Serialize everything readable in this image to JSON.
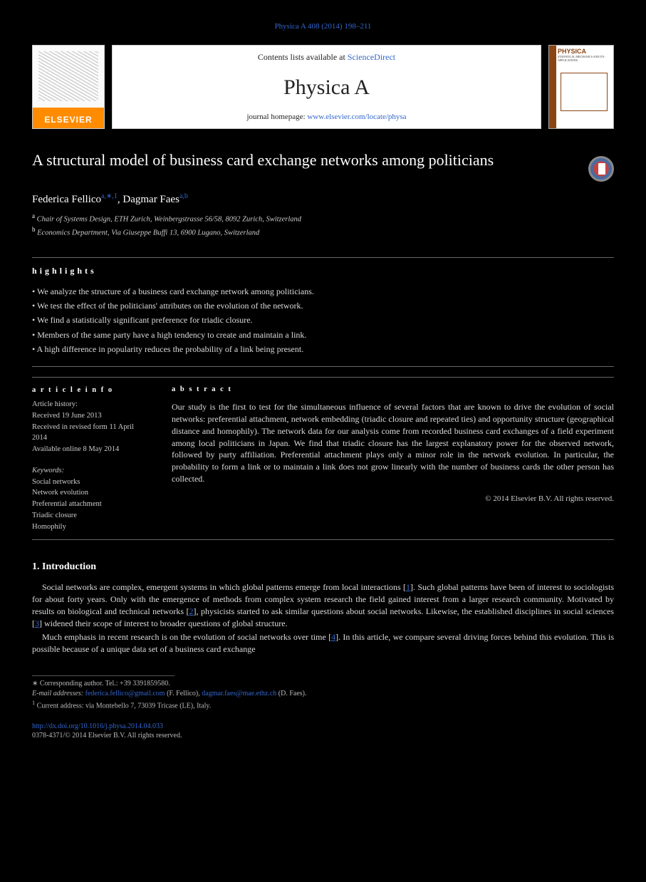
{
  "running_head": "Physica A 408 (2014) 198–211",
  "banner": {
    "elsevier_brand": "ELSEVIER",
    "contents_prefix": "Contents lists available at ",
    "contents_link": "ScienceDirect",
    "journal_name": "Physica A",
    "homepage_prefix": "journal homepage: ",
    "homepage_link": "www.elsevier.com/locate/physa",
    "cover_title": "PHYSICA",
    "cover_sub": "STATISTICAL MECHANICS AND ITS APPLICATIONS"
  },
  "article": {
    "title": "A structural model of business card exchange networks among politicians",
    "authors": "Federica Fellico",
    "author1_sup": "a,∗,1",
    "author2": ", Dagmar Faes",
    "author2_sup": "a,b",
    "affiliations": {
      "a": "Chair of Systems Design, ETH Zurich, Weinbergstrasse 56/58, 8092 Zurich, Switzerland",
      "b": "Economics Department, Via Giuseppe Buffi 13, 6900 Lugano, Switzerland"
    }
  },
  "highlights": {
    "heading": "h i g h l i g h t s",
    "items": [
      "We analyze the structure of a business card exchange network among politicians.",
      "We test the effect of the politicians' attributes on the evolution of the network.",
      "We find a statistically significant preference for triadic closure.",
      "Members of the same party have a high tendency to create and maintain a link.",
      "A high difference in popularity reduces the probability of a link being present."
    ]
  },
  "info": {
    "heading": "a r t i c l e   i n f o",
    "history": [
      "Article history:",
      "Received 19 June 2013",
      "Received in revised form 11 April 2014",
      "Available online 8 May 2014"
    ],
    "keywords_head": "Keywords:",
    "keywords": [
      "Social networks",
      "Network evolution",
      "Preferential attachment",
      "Triadic closure",
      "Homophily"
    ]
  },
  "abstract": {
    "heading": "a b s t r a c t",
    "text": "Our study is the first to test for the simultaneous influence of several factors that are known to drive the evolution of social networks: preferential attachment, network embedding (triadic closure and repeated ties) and opportunity structure (geographical distance and homophily). The network data for our analysis come from recorded business card exchanges of a field experiment among local politicians in Japan. We find that triadic closure has the largest explanatory power for the observed network, followed by party affiliation. Preferential attachment plays only a minor role in the network evolution. In particular, the probability to form a link or to maintain a link does not grow linearly with the number of business cards the other person has collected.",
    "copyright": "© 2014 Elsevier B.V. All rights reserved."
  },
  "section1": {
    "heading": "1. Introduction",
    "p1_a": "Social networks are complex, emergent systems in which global patterns emerge from local interactions [",
    "ref1": "1",
    "p1_b": "]. Such global patterns have been of interest to sociologists for about forty years. Only with the emergence of methods from complex system research the field gained interest from a larger research community. Motivated by results on biological and technical networks [",
    "ref2": "2",
    "p1_c": "], physicists started to ask similar questions about social networks. Likewise, the established disciplines in social sciences [",
    "ref3": "3",
    "p1_d": "] widened their scope of interest to broader questions of global structure.",
    "p2_a": "Much emphasis in recent research is on the evolution of social networks over time [",
    "ref4": "4",
    "p2_b": "]. In this article, we compare several driving forces behind this evolution. This is possible because of a unique data set of a business card exchange"
  },
  "footnotes": {
    "corr_marker": "∗",
    "corr_text": " Corresponding author. Tel.: +39 3391859580.",
    "email_label": "E-mail addresses: ",
    "email1": "federica.fellico@gmail.com",
    "email1_who": " (F. Fellico), ",
    "email2": "dagmar.faes@mae.ethz.ch",
    "email2_who": " (D. Faes).",
    "note1_marker": "1",
    "note1_text": " Current address: via Montebello 7, 73039 Tricase (LE), Italy."
  },
  "doi": {
    "link": "http://dx.doi.org/10.1016/j.physa.2014.04.033",
    "copyright": "0378-4371/© 2014 Elsevier B.V. All rights reserved."
  }
}
